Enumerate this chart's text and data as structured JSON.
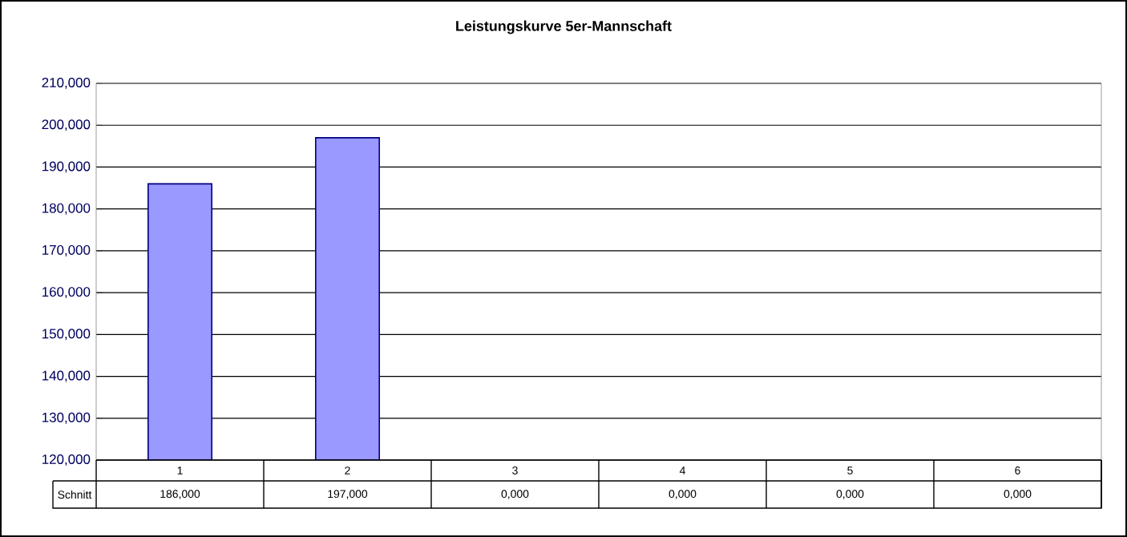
{
  "chart_data": {
    "type": "bar",
    "title": "Leistungskurve 5er-Mannschaft",
    "categories": [
      "1",
      "2",
      "3",
      "4",
      "5",
      "6"
    ],
    "series": [
      {
        "name": "Schnitt",
        "color": "#9999ff",
        "values": [
          186,
          197,
          null,
          null,
          null,
          null
        ],
        "value_labels": [
          "186,000",
          "197,000",
          "0,000",
          "0,000",
          "0,000",
          "0,000"
        ]
      }
    ],
    "ylim": [
      120,
      210
    ],
    "yticks": [
      {
        "value": 120,
        "label": "120,000"
      },
      {
        "value": 130,
        "label": "130,000"
      },
      {
        "value": 140,
        "label": "140,000"
      },
      {
        "value": 150,
        "label": "150,000"
      },
      {
        "value": 160,
        "label": "160,000"
      },
      {
        "value": 170,
        "label": "170,000"
      },
      {
        "value": 180,
        "label": "180,000"
      },
      {
        "value": 190,
        "label": "190,000"
      },
      {
        "value": 200,
        "label": "200,000"
      },
      {
        "value": 210,
        "label": "210,000"
      }
    ],
    "grid": "y",
    "legend": "bottom left"
  }
}
